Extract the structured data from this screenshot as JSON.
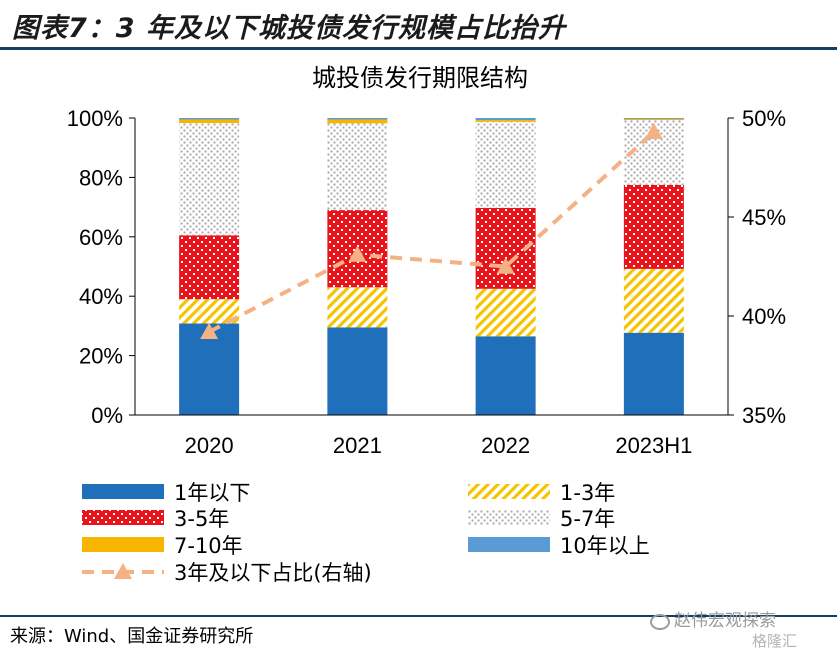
{
  "header": {
    "figure_title": "图表7：3 年及以下城投债发行规模占比抬升"
  },
  "footer": {
    "source": "来源：Wind、国金证券研究所"
  },
  "watermark": {
    "line1": "赵伟宏观探索",
    "line2": "格隆汇"
  },
  "colors": {
    "y1_below": "#1f6fba",
    "y1_3": "#f5c400",
    "y3_5": "#e8141b",
    "y5_7": "#a8a8a8",
    "y7_10": "#f7b500",
    "y10_plus": "#5b9bd5",
    "share_line": "#f4b183",
    "rule": "#123f63"
  },
  "chart_data": {
    "type": "bar",
    "stacked": true,
    "title": "城投债发行期限结构",
    "categories": [
      "2020",
      "2021",
      "2022",
      "2023H1"
    ],
    "ylim": [
      0,
      100
    ],
    "y_ticks": [
      "0%",
      "20%",
      "40%",
      "60%",
      "80%",
      "100%"
    ],
    "y2lim": [
      35,
      50
    ],
    "y2_ticks": [
      "35%",
      "40%",
      "45%",
      "50%"
    ],
    "series": [
      {
        "name": "1年以下",
        "key": "y1_below",
        "pattern": "solid",
        "values": [
          30.8,
          29.5,
          26.5,
          27.7
        ]
      },
      {
        "name": "1-3年",
        "key": "y1_3",
        "pattern": "diagonal",
        "values": [
          8.2,
          13.5,
          16.0,
          21.5
        ]
      },
      {
        "name": "3-5年",
        "key": "y3_5",
        "pattern": "dots-red",
        "values": [
          21.5,
          26.0,
          27.2,
          28.3
        ]
      },
      {
        "name": "5-7年",
        "key": "y5_7",
        "pattern": "dots-grey",
        "values": [
          37.8,
          29.2,
          29.0,
          21.8
        ]
      },
      {
        "name": "7-10年",
        "key": "y7_10",
        "pattern": "solid",
        "values": [
          1.2,
          1.3,
          0.6,
          0.4
        ]
      },
      {
        "name": "10年以上",
        "key": "y10_plus",
        "pattern": "solid",
        "values": [
          0.5,
          0.5,
          0.7,
          0.3
        ]
      }
    ],
    "line": {
      "name": "3年及以下占比(右轴)",
      "axis": "right",
      "values": [
        39.2,
        43.1,
        42.5,
        49.3
      ]
    },
    "legend_position": "bottom",
    "grid": false
  }
}
